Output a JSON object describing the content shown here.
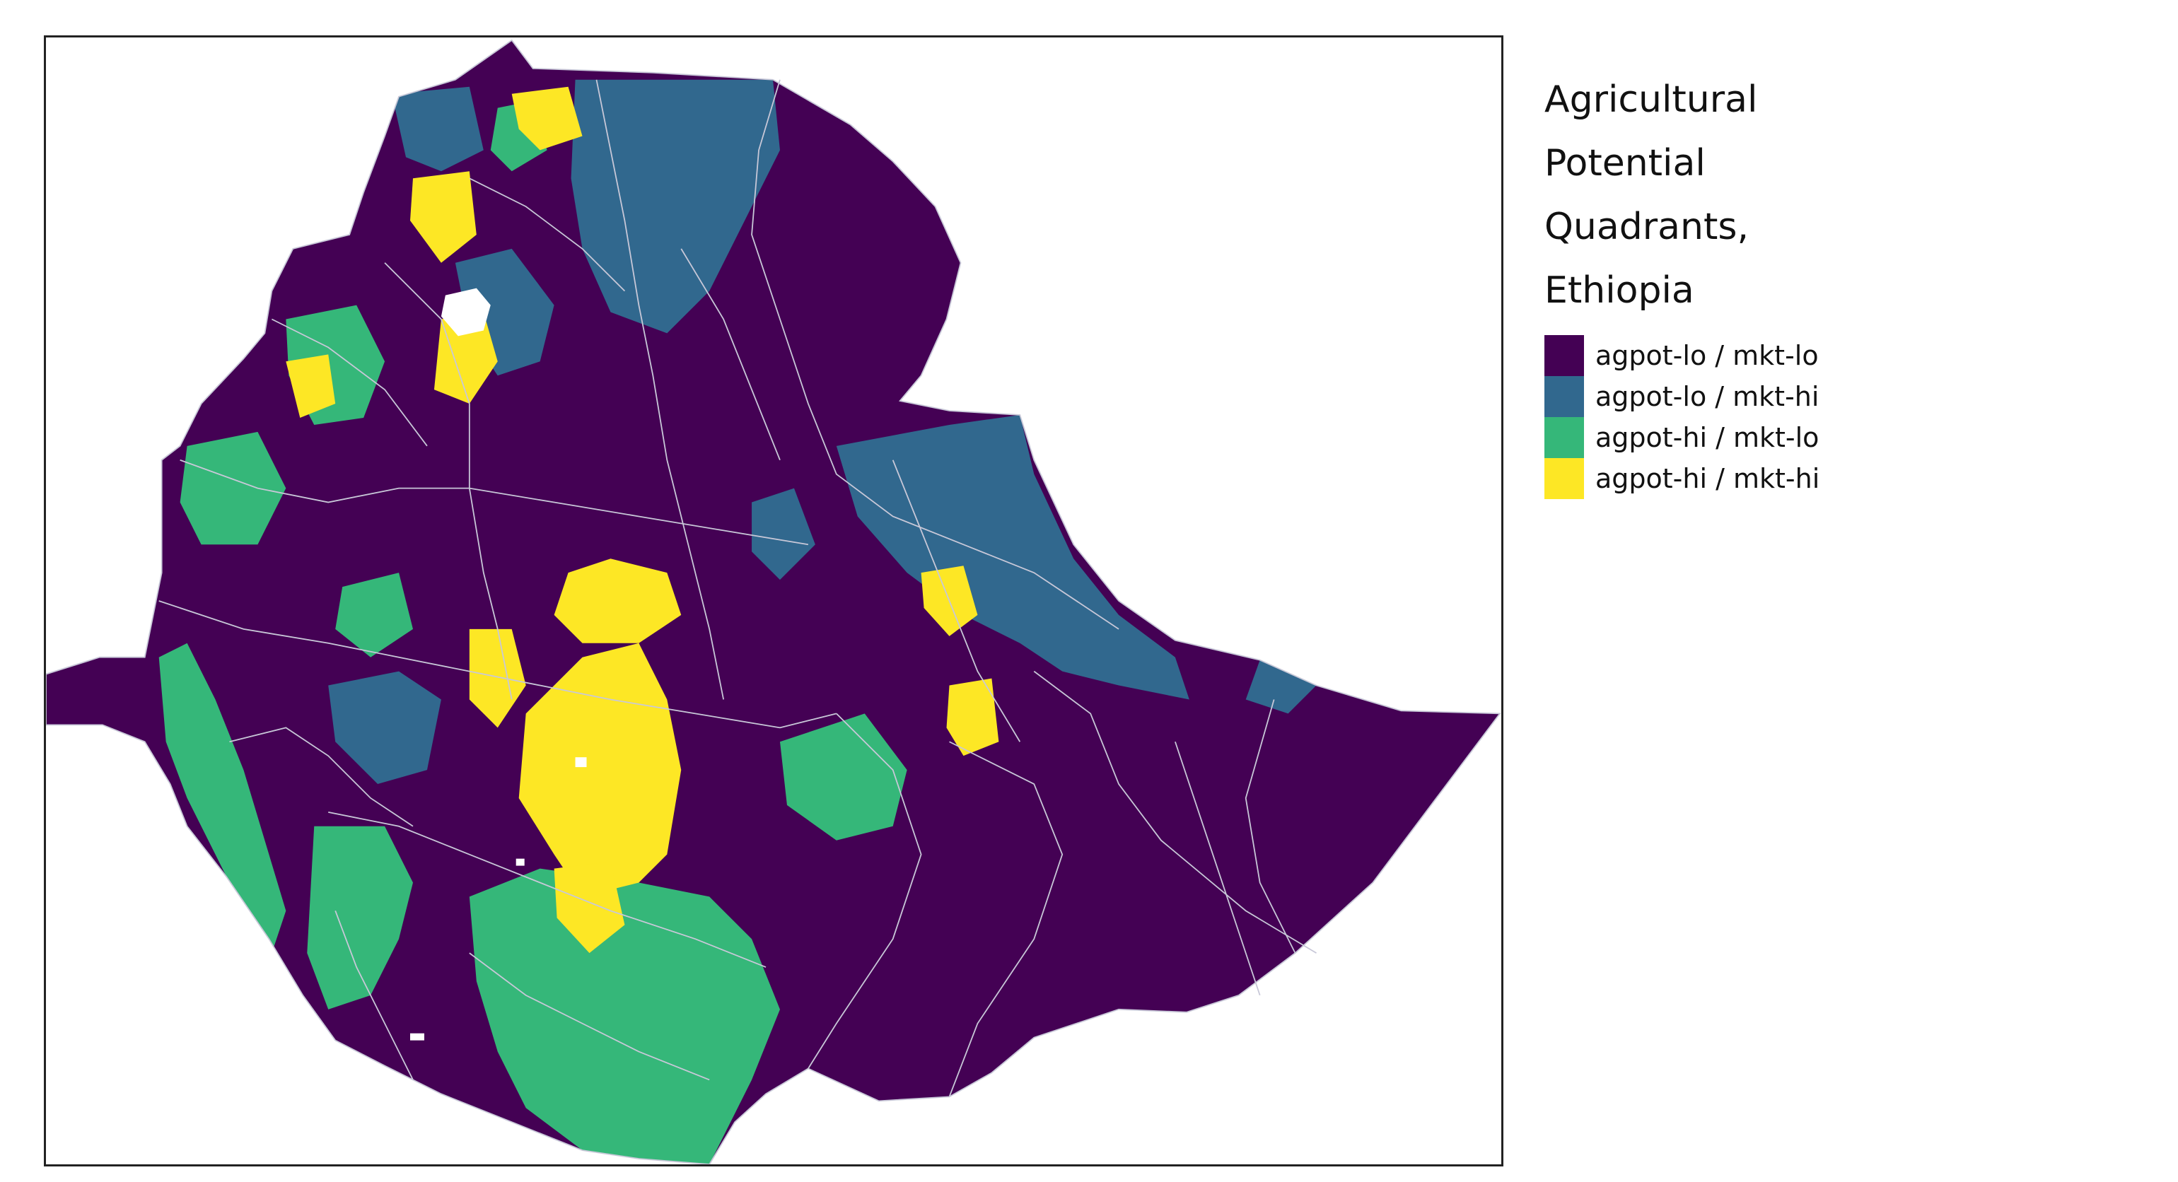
{
  "legend": {
    "title_lines": [
      "Agricultural",
      "Potential",
      "Quadrants,",
      "Ethiopia"
    ],
    "items": [
      {
        "label": "agpot-lo / mkt-lo",
        "color": "#440154"
      },
      {
        "label": "agpot-lo / mkt-hi",
        "color": "#31688e"
      },
      {
        "label": "agpot-hi / mkt-lo",
        "color": "#35b779"
      },
      {
        "label": "agpot-hi / mkt-hi",
        "color": "#fde725"
      }
    ]
  },
  "map": {
    "country": "Ethiopia",
    "boundary_color": "#c8c8d8",
    "quadrant_colors": {
      "agpot-lo / mkt-lo": "#440154",
      "agpot-lo / mkt-hi": "#31688e",
      "agpot-hi / mkt-lo": "#35b779",
      "agpot-hi / mkt-hi": "#fde725"
    }
  }
}
